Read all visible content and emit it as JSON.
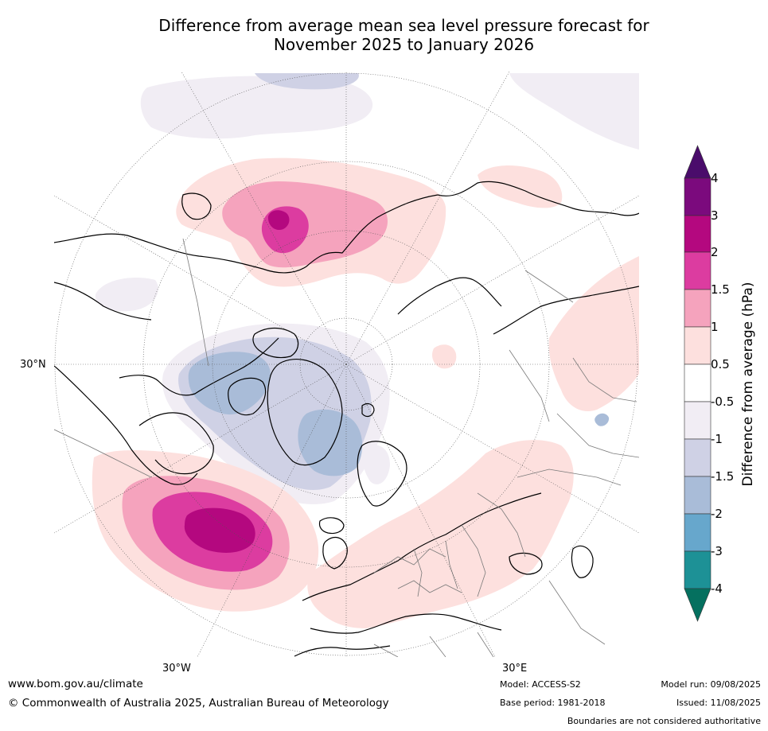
{
  "title": {
    "line1": "Difference from average mean sea level pressure forecast for",
    "line2": "November 2025 to January 2026"
  },
  "map": {
    "projection": "north-polar-stereographic",
    "region": "Northern Hemisphere (Atlantic / Europe sector)",
    "lat_label": "30°N",
    "lon_labels": {
      "west": "30°W",
      "east": "30°E"
    },
    "anomaly_features": [
      {
        "location": "central-north-atlantic",
        "max_hPa": 3
      },
      {
        "location": "bering-strait-alaska",
        "max_hPa": 3
      },
      {
        "location": "canadian-arctic-greenland",
        "min_hPa": -2
      },
      {
        "location": "europe-mediterranean",
        "max_hPa": 1
      }
    ]
  },
  "colorbar": {
    "label": "Difference from average (hPa)",
    "ticks": [
      "4",
      "3",
      "2",
      "1.5",
      "1",
      "0.5",
      "-0.5",
      "-1",
      "-1.5",
      "-2",
      "-3",
      "-4"
    ],
    "colors": {
      "above_4": "#4a0c6b",
      "3_to_4": "#7b0a7d",
      "2_to_3": "#b4087f",
      "1.5_to_2": "#dc3ca0",
      "1_to_1.5": "#f5a3bd",
      "0.5_to_1": "#fde0de",
      "neg0.5_to_0.5": "#ffffff",
      "neg1_to_neg0.5": "#f1edf4",
      "neg1.5_to_neg1": "#cfd1e5",
      "neg2_to_neg1.5": "#a9bcd8",
      "neg3_to_neg2": "#67a7cc",
      "neg4_to_neg3": "#1d9196",
      "below_neg4": "#05705f"
    }
  },
  "footer": {
    "url": "www.bom.gov.au/climate",
    "copyright": "© Commonwealth of Australia 2025, Australian Bureau of Meteorology",
    "model": "Model: ACCESS-S2",
    "base_period": "Base period: 1981-2018",
    "model_run": "Model run: 09/08/2025",
    "issued": "Issued: 11/08/2025",
    "disclaimer": "Boundaries are not considered authoritative"
  }
}
